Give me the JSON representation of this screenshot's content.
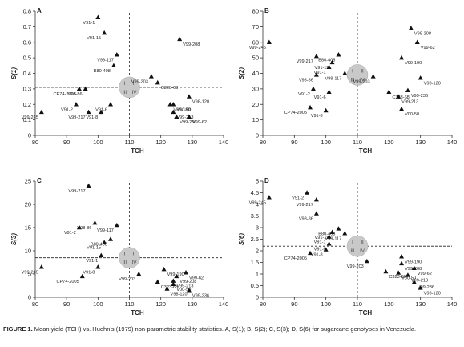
{
  "caption": {
    "label": "FIGURE 1.",
    "text": "Mean yield (TCH) vs. Huehn’s (1979) non-parametric stability statistics. A, S(1); B, S(2); C, S(3); D, S(6) for sugarcane genotypes in Venezuela."
  },
  "chart_data": [
    {
      "type": "scatter",
      "panel": "A",
      "xlabel": "TCH",
      "ylabel": "S(1)",
      "xlim": [
        80,
        140
      ],
      "ylim": [
        0,
        0.8
      ],
      "xticks": [
        80,
        90,
        100,
        110,
        120,
        130,
        140
      ],
      "yticks": [
        0,
        0.1,
        0.2,
        0.3,
        0.4,
        0.5,
        0.6,
        0.7,
        0.8
      ],
      "tick_labels_y": [
        "0",
        "0.1",
        "0.2",
        "0.3",
        "0.4",
        "0.5",
        "0.6",
        "0.7",
        "0.8"
      ],
      "mean_x": 110,
      "mean_y": 0.31,
      "quadrants": [
        "I",
        "II",
        "III",
        "IV"
      ],
      "points": [
        {
          "label": "V91-1",
          "x": 100,
          "y": 0.76
        },
        {
          "label": "V91-15",
          "x": 102,
          "y": 0.66
        },
        {
          "label": "V99-208",
          "x": 126,
          "y": 0.62
        },
        {
          "label": "V99-117",
          "x": 106,
          "y": 0.52
        },
        {
          "label": "B80-408",
          "x": 105,
          "y": 0.45
        },
        {
          "label": "V99-203",
          "x": 117,
          "y": 0.38
        },
        {
          "label": "C323-68",
          "x": 119,
          "y": 0.34
        },
        {
          "label": "CP74-2005",
          "x": 94,
          "y": 0.3
        },
        {
          "label": "V98-86",
          "x": 96,
          "y": 0.3
        },
        {
          "label": "V98-120",
          "x": 129,
          "y": 0.25
        },
        {
          "label": "V91-2",
          "x": 93,
          "y": 0.2
        },
        {
          "label": "V91-6",
          "x": 104,
          "y": 0.2
        },
        {
          "label": "V99-190",
          "x": 123,
          "y": 0.2
        },
        {
          "label": "V00-50",
          "x": 124,
          "y": 0.2
        },
        {
          "label": "V99-245",
          "x": 82,
          "y": 0.15
        },
        {
          "label": "V99-217",
          "x": 97,
          "y": 0.15
        },
        {
          "label": "V91-8",
          "x": 101,
          "y": 0.15
        },
        {
          "label": "V99-213",
          "x": 124,
          "y": 0.15
        },
        {
          "label": "V99-236",
          "x": 125,
          "y": 0.12
        },
        {
          "label": "V99-62",
          "x": 129,
          "y": 0.12
        }
      ]
    },
    {
      "type": "scatter",
      "panel": "B",
      "xlabel": "TCH",
      "ylabel": "S(2)",
      "xlim": [
        80,
        140
      ],
      "ylim": [
        0,
        80
      ],
      "xticks": [
        80,
        90,
        100,
        110,
        120,
        130,
        140
      ],
      "yticks": [
        0,
        10,
        20,
        30,
        40,
        50,
        60,
        70,
        80
      ],
      "tick_labels_y": [
        "0",
        "10",
        "20",
        "30",
        "40",
        "50",
        "60",
        "70",
        "80"
      ],
      "mean_x": 110,
      "mean_y": 39,
      "quadrants": [
        "I",
        "II",
        "III",
        "IV"
      ],
      "points": [
        {
          "label": "V99-208",
          "x": 127,
          "y": 69
        },
        {
          "label": "V99-245",
          "x": 82,
          "y": 60
        },
        {
          "label": "V99-62",
          "x": 129,
          "y": 60
        },
        {
          "label": "V99-217",
          "x": 97,
          "y": 51
        },
        {
          "label": "B80-408",
          "x": 104,
          "y": 52
        },
        {
          "label": "V91-15",
          "x": 102,
          "y": 47
        },
        {
          "label": "V99-190",
          "x": 124,
          "y": 50
        },
        {
          "label": "V91-1",
          "x": 101,
          "y": 44
        },
        {
          "label": "V98-86",
          "x": 97,
          "y": 39
        },
        {
          "label": "V99-117",
          "x": 106,
          "y": 40
        },
        {
          "label": "V99-203",
          "x": 115,
          "y": 38
        },
        {
          "label": "V98-120",
          "x": 130,
          "y": 37
        },
        {
          "label": "V91-2",
          "x": 96,
          "y": 30
        },
        {
          "label": "V91-6",
          "x": 101,
          "y": 28
        },
        {
          "label": "C323-68",
          "x": 120,
          "y": 28
        },
        {
          "label": "V99-236",
          "x": 126,
          "y": 29
        },
        {
          "label": "V99-213",
          "x": 123,
          "y": 25
        },
        {
          "label": "CP74-2005",
          "x": 95,
          "y": 18
        },
        {
          "label": "V91-8",
          "x": 100,
          "y": 16
        },
        {
          "label": "V00-50",
          "x": 124,
          "y": 17
        }
      ]
    },
    {
      "type": "scatter",
      "panel": "C",
      "xlabel": "TCH",
      "ylabel": "S(3)",
      "xlim": [
        80,
        140
      ],
      "ylim": [
        0,
        25
      ],
      "xticks": [
        80,
        90,
        100,
        110,
        120,
        130,
        140
      ],
      "yticks": [
        0,
        5,
        10,
        15,
        20,
        25
      ],
      "tick_labels_y": [
        "0",
        "5",
        "10",
        "15",
        "20",
        "25"
      ],
      "mean_x": 110,
      "mean_y": 8.5,
      "quadrants": [
        "I",
        "II",
        "III",
        "IV"
      ],
      "points": [
        {
          "label": "V99-217",
          "x": 97,
          "y": 24
        },
        {
          "label": "V98-86",
          "x": 99,
          "y": 16
        },
        {
          "label": "V99-117",
          "x": 106,
          "y": 15.5
        },
        {
          "label": "V91-2",
          "x": 94,
          "y": 15
        },
        {
          "label": "B80-408",
          "x": 104,
          "y": 12.5
        },
        {
          "label": "V91-15",
          "x": 102,
          "y": 11.8
        },
        {
          "label": "V91-1",
          "x": 101,
          "y": 9
        },
        {
          "label": "V91-8",
          "x": 100,
          "y": 6.5
        },
        {
          "label": "V99-245",
          "x": 82,
          "y": 6.5
        },
        {
          "label": "V99-190",
          "x": 121,
          "y": 6
        },
        {
          "label": "V99-62",
          "x": 128,
          "y": 5.3
        },
        {
          "label": "V99-203",
          "x": 113,
          "y": 5
        },
        {
          "label": "V99-208",
          "x": 125,
          "y": 4.5
        },
        {
          "label": "CP74-2005",
          "x": 95,
          "y": 4.5
        },
        {
          "label": "V99-213",
          "x": 124,
          "y": 3.5
        },
        {
          "label": "C323-68",
          "x": 119,
          "y": 3.3
        },
        {
          "label": "V00-50",
          "x": 124,
          "y": 2.8
        },
        {
          "label": "V98-120",
          "x": 122,
          "y": 1.8
        },
        {
          "label": "V99-236",
          "x": 129,
          "y": 1.5
        }
      ]
    },
    {
      "type": "scatter",
      "panel": "D",
      "xlabel": "TCH",
      "ylabel": "S(6)",
      "xlim": [
        80,
        140
      ],
      "ylim": [
        0,
        5
      ],
      "xticks": [
        80,
        90,
        100,
        110,
        120,
        130,
        140
      ],
      "yticks": [
        0,
        0.5,
        1,
        1.5,
        2,
        2.5,
        3,
        3.5,
        4,
        4.5,
        5
      ],
      "tick_labels_y": [
        "0",
        "0.5",
        "1",
        "1.5",
        "2",
        "2.5",
        "3",
        "3.5",
        "4",
        "4.5",
        "5"
      ],
      "mean_x": 110,
      "mean_y": 2.2,
      "quadrants": [
        "I",
        "II",
        "III",
        "IV"
      ],
      "points": [
        {
          "label": "V99-245",
          "x": 82,
          "y": 4.3
        },
        {
          "label": "V91-2",
          "x": 94,
          "y": 4.5
        },
        {
          "label": "V99-217",
          "x": 97,
          "y": 4.2
        },
        {
          "label": "V98-86",
          "x": 97,
          "y": 3.6
        },
        {
          "label": "B80-408",
          "x": 104,
          "y": 2.95
        },
        {
          "label": "V91-15",
          "x": 102,
          "y": 2.8
        },
        {
          "label": "V99-117",
          "x": 106,
          "y": 2.75
        },
        {
          "label": "V91-1",
          "x": 101,
          "y": 2.6
        },
        {
          "label": "V91-6",
          "x": 101,
          "y": 2.3
        },
        {
          "label": "V91-8",
          "x": 100,
          "y": 2.05
        },
        {
          "label": "CP74-2005",
          "x": 95,
          "y": 1.9
        },
        {
          "label": "V99-203",
          "x": 113,
          "y": 1.55
        },
        {
          "label": "V99-190",
          "x": 124,
          "y": 1.75
        },
        {
          "label": "V99-208",
          "x": 124,
          "y": 1.45
        },
        {
          "label": "V99-62",
          "x": 128,
          "y": 1.25
        },
        {
          "label": "C323-68",
          "x": 119,
          "y": 1.1
        },
        {
          "label": "V00-50",
          "x": 123,
          "y": 1.05
        },
        {
          "label": "V99-213",
          "x": 126,
          "y": 0.95
        },
        {
          "label": "V99-236",
          "x": 128,
          "y": 0.65
        },
        {
          "label": "V98-120",
          "x": 130,
          "y": 0.4
        }
      ]
    }
  ]
}
